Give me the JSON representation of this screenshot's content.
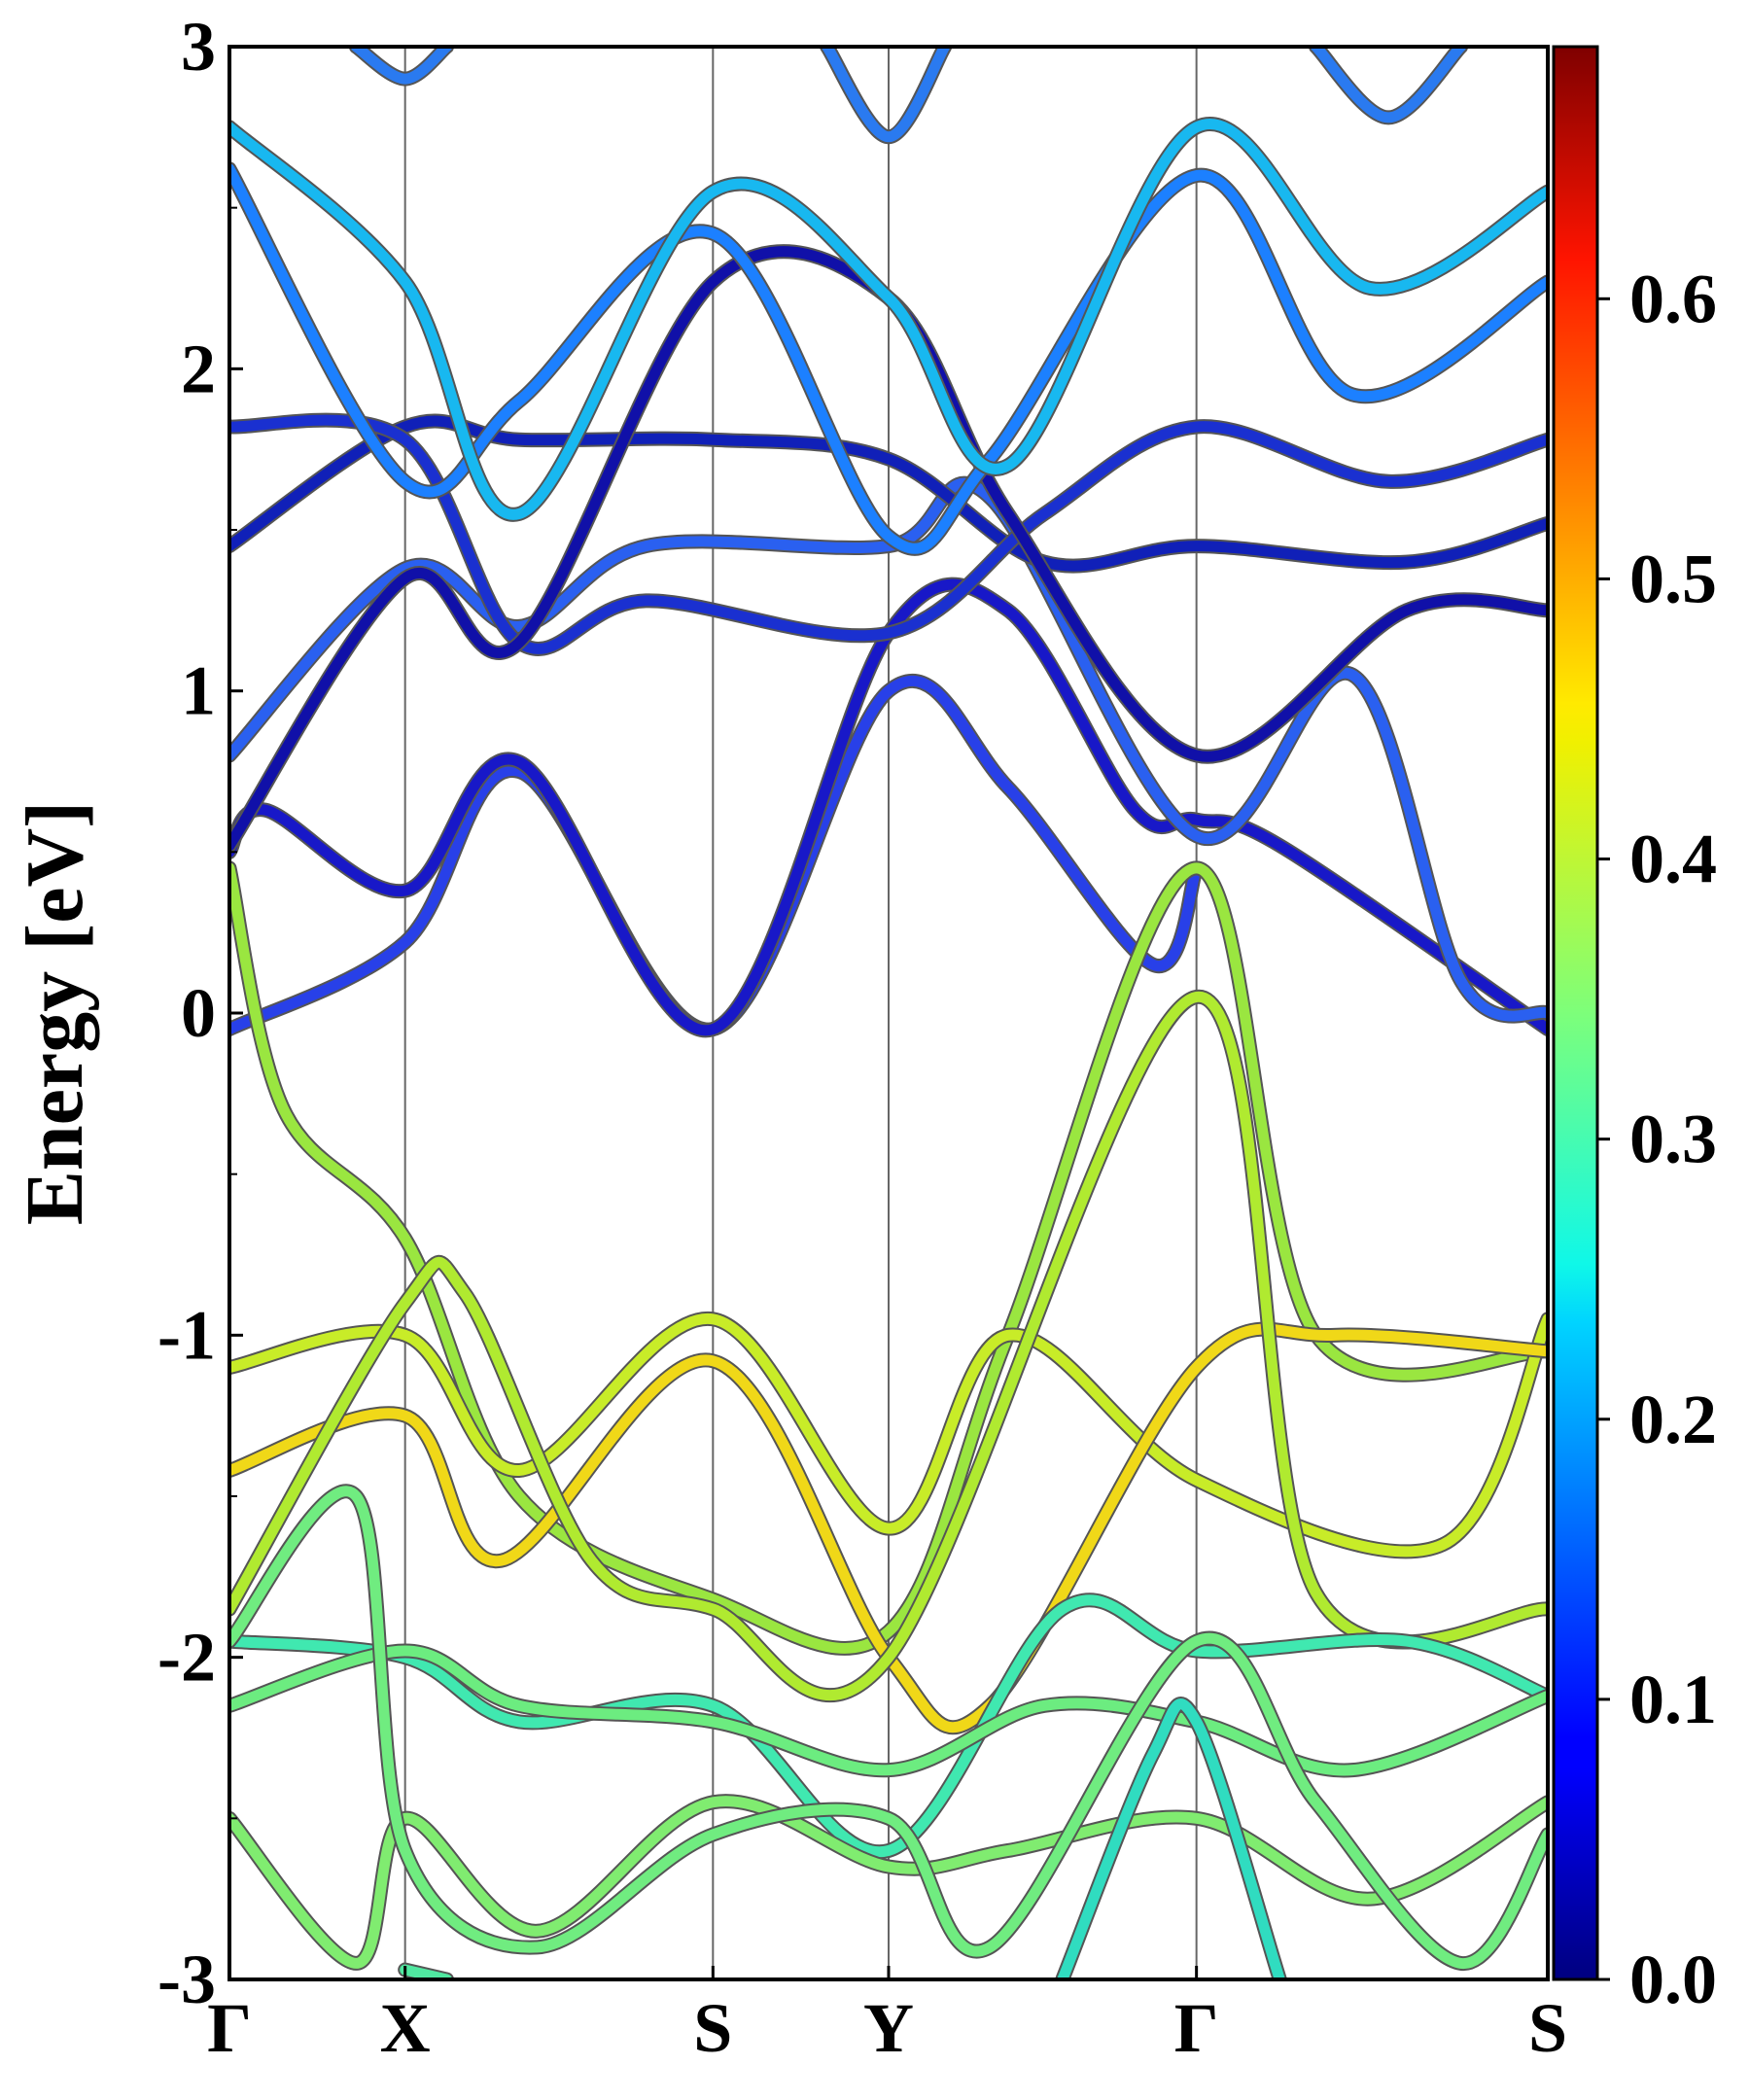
{
  "chart_data": {
    "type": "line",
    "title": "",
    "xlabel": "",
    "ylabel": "Energy [eV]",
    "ylim": [
      -3,
      3
    ],
    "y_ticks": [
      "3",
      "2",
      "1",
      "0",
      "-1",
      "-2",
      "-3"
    ],
    "high_symmetry_points": [
      "Γ",
      "X",
      "S",
      "Y",
      "Γ",
      "S"
    ],
    "k_positions": [
      0,
      0.97,
      2.67,
      3.64,
      5.34,
      7.28
    ],
    "grid_lines_at_high_symmetry_points": true,
    "colorbar": {
      "colormap": "jet",
      "range": [
        0,
        0.69
      ],
      "ticks": [
        "0.0",
        "0.1",
        "0.2",
        "0.3",
        "0.4",
        "0.5",
        "0.6"
      ],
      "position": "right"
    },
    "series": [
      {
        "color": "#2840e8",
        "x": [
          0,
          0.97,
          1.6,
          2.67,
          3.64,
          4.3,
          5.1,
          5.34
        ],
        "values": [
          -0.05,
          0.22,
          0.75,
          -0.05,
          1.0,
          0.7,
          0.15,
          0.45
        ]
      },
      {
        "color": "#1818c8",
        "x": [
          0,
          0.2,
          0.97,
          1.6,
          2.67,
          3.64,
          4.3,
          5.0,
          5.34,
          5.8,
          7.28
        ],
        "values": [
          0.5,
          0.63,
          0.38,
          0.78,
          -0.05,
          1.18,
          1.25,
          0.63,
          0.6,
          0.52,
          -0.05
        ]
      },
      {
        "color": "#2a60f0",
        "x": [
          0,
          0.97,
          1.6,
          2.3,
          3.64,
          4.2,
          5.34,
          6.2,
          6.8,
          7.28
        ],
        "values": [
          0.8,
          1.38,
          1.2,
          1.45,
          1.45,
          1.6,
          0.55,
          1.05,
          0.1,
          0.0
        ]
      },
      {
        "color": "#1020b8",
        "x": [
          0,
          0.97,
          1.6,
          2.67,
          3.64,
          4.5,
          5.34,
          6.5,
          7.28
        ],
        "values": [
          1.45,
          1.82,
          1.78,
          1.78,
          1.72,
          1.4,
          1.45,
          1.4,
          1.52
        ]
      },
      {
        "color": "#1a30d0",
        "x": [
          0,
          0.97,
          1.6,
          2.3,
          3.64,
          4.5,
          5.34,
          6.4,
          7.28
        ],
        "values": [
          1.82,
          1.78,
          1.15,
          1.28,
          1.18,
          1.55,
          1.82,
          1.65,
          1.78
        ]
      },
      {
        "color": "#1010a8",
        "x": [
          0,
          0.97,
          1.6,
          2.67,
          3.64,
          4.3,
          5.34,
          6.5,
          7.28
        ],
        "values": [
          0.52,
          1.35,
          1.15,
          2.27,
          2.22,
          1.55,
          0.8,
          1.25,
          1.25
        ]
      },
      {
        "color": "#1c80ff",
        "x": [
          0,
          0.97,
          1.6,
          2.67,
          3.64,
          4.2,
          5.34,
          6.2,
          7.28
        ],
        "values": [
          2.62,
          1.65,
          1.9,
          2.42,
          1.48,
          1.72,
          2.6,
          1.92,
          2.27
        ]
      },
      {
        "color": "#18b8f0",
        "x": [
          0,
          0.97,
          1.6,
          2.67,
          3.64,
          4.3,
          5.34,
          6.3,
          7.28
        ],
        "values": [
          2.75,
          2.27,
          1.55,
          2.55,
          2.22,
          1.7,
          2.75,
          2.25,
          2.55
        ]
      },
      {
        "color": "#2a7af0",
        "x": [
          0.7,
          0.97,
          1.2
        ],
        "values": [
          3.0,
          2.9,
          3.0
        ]
      },
      {
        "color": "#2a7af0",
        "x": [
          3.3,
          3.64,
          3.95
        ],
        "values": [
          3.0,
          2.72,
          3.0
        ]
      },
      {
        "color": "#2a7af0",
        "x": [
          6.0,
          6.4,
          6.8
        ],
        "values": [
          3.0,
          2.78,
          3.0
        ]
      },
      {
        "color": "#9ae640",
        "x": [
          0,
          0.3,
          0.97,
          1.6,
          2.67,
          3.64,
          4.3,
          5.34,
          6.0,
          7.28
        ],
        "values": [
          0.45,
          -0.3,
          -0.7,
          -1.5,
          -1.82,
          -1.92,
          -1.0,
          0.45,
          -1.0,
          -1.05
        ]
      },
      {
        "color": "#c8ec28",
        "x": [
          0,
          0.97,
          1.6,
          2.67,
          3.64,
          4.3,
          5.34,
          6.7,
          7.28
        ],
        "values": [
          -1.1,
          -1.0,
          -1.42,
          -0.95,
          -1.6,
          -1.0,
          -1.45,
          -1.65,
          -0.95
        ]
      },
      {
        "color": "#f0d818",
        "x": [
          0,
          0.97,
          1.5,
          2.67,
          3.64,
          4.2,
          5.34,
          6.1,
          7.28
        ],
        "values": [
          -1.42,
          -1.25,
          -1.7,
          -1.08,
          -2.0,
          -2.15,
          -1.1,
          -1.0,
          -1.05
        ]
      },
      {
        "color": "#b0ea30",
        "x": [
          0,
          0.97,
          1.3,
          2.0,
          2.67,
          3.64,
          5.34,
          6.0,
          7.28
        ],
        "values": [
          -1.85,
          -0.9,
          -0.87,
          -1.7,
          -1.85,
          -2.0,
          0.05,
          -1.8,
          -1.85
        ]
      },
      {
        "color": "#40e8b0",
        "x": [
          0,
          0.97,
          1.6,
          2.67,
          3.64,
          4.6,
          5.34,
          6.5,
          7.28
        ],
        "values": [
          -1.95,
          -2.0,
          -2.2,
          -2.15,
          -2.6,
          -1.85,
          -1.98,
          -1.95,
          -2.12
        ]
      },
      {
        "color": "#6cec80",
        "x": [
          0,
          0.97,
          1.6,
          2.67,
          3.64,
          4.5,
          5.34,
          6.2,
          7.28
        ],
        "values": [
          -2.15,
          -1.98,
          -2.15,
          -2.2,
          -2.35,
          -2.15,
          -2.2,
          -2.35,
          -2.12
        ]
      },
      {
        "color": "#80ec70",
        "x": [
          0,
          0.7,
          0.97,
          1.7,
          2.67,
          3.64,
          4.3,
          5.34,
          6.3,
          7.28
        ],
        "values": [
          -2.5,
          -2.95,
          -2.5,
          -2.85,
          -2.45,
          -2.65,
          -2.6,
          -2.5,
          -2.75,
          -2.45
        ]
      },
      {
        "color": "#70ec80",
        "x": [
          0,
          0.7,
          0.97,
          1.7,
          2.67,
          3.64,
          4.2,
          5.34,
          6.0,
          6.8,
          7.28
        ],
        "values": [
          -1.95,
          -1.5,
          -2.6,
          -2.9,
          -2.55,
          -2.5,
          -2.9,
          -1.95,
          -2.45,
          -2.95,
          -2.55
        ]
      },
      {
        "color": "#50e8a0",
        "x": [
          0.97,
          1.2
        ],
        "values": [
          -2.97,
          -3.0
        ]
      },
      {
        "color": "#30dcc0",
        "x": [
          4.6,
          5.1,
          5.34,
          5.8
        ],
        "values": [
          -3.0,
          -2.3,
          -2.2,
          -3.0
        ]
      }
    ]
  }
}
